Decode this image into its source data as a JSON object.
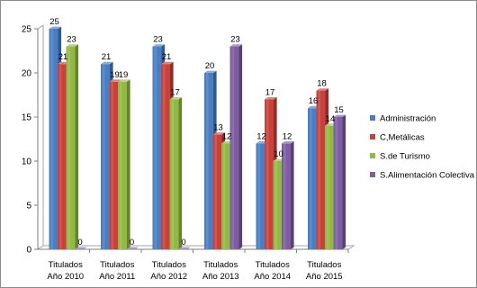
{
  "chart_data": {
    "type": "bar",
    "categories": [
      [
        "Titulados",
        "Año 2010"
      ],
      [
        "Titulados",
        "Año 2011"
      ],
      [
        "Titulados",
        "Año 2012"
      ],
      [
        "Titulados",
        "Año 2013"
      ],
      [
        "Titulados",
        "Año 2014"
      ],
      [
        "Titulados",
        "Año 2015"
      ]
    ],
    "series": [
      {
        "name": "Administración",
        "values": [
          25,
          21,
          23,
          20,
          12,
          16
        ],
        "color": "#4a7ec2"
      },
      {
        "name": "C,Metálicas",
        "values": [
          21,
          19,
          21,
          13,
          17,
          18
        ],
        "color": "#c8413b"
      },
      {
        "name": "S.de Turismo",
        "values": [
          23,
          19,
          17,
          12,
          10,
          14
        ],
        "color": "#93b945"
      },
      {
        "name": "S.Alimentación Colectiva",
        "values": [
          0,
          0,
          0,
          23,
          12,
          15
        ],
        "color": "#7e5ea3"
      }
    ],
    "ylim": [
      0,
      25
    ],
    "yticks": [
      0,
      5,
      10,
      15,
      20,
      25
    ],
    "grid": false,
    "legend_position": "right",
    "style": "3d-clustered-column"
  }
}
